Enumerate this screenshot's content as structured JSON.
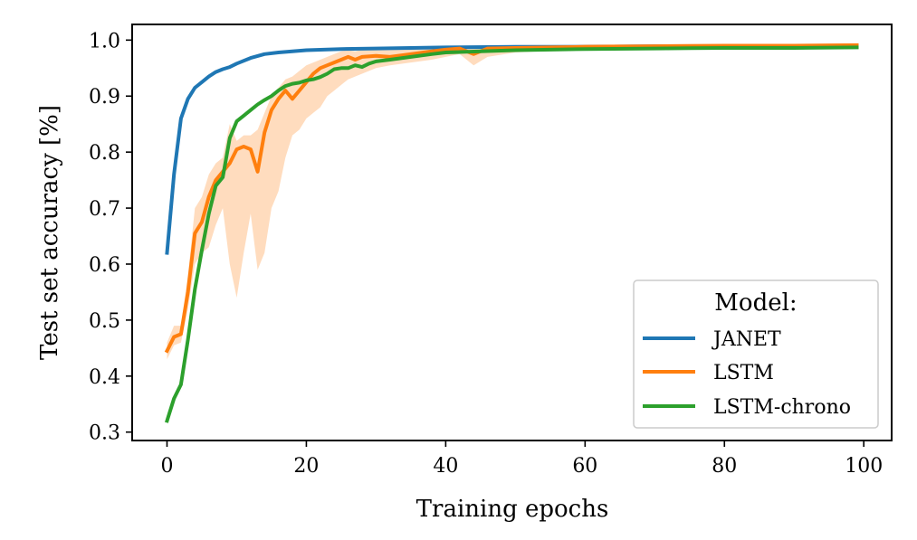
{
  "chart_data": {
    "type": "line",
    "title": "",
    "xlabel": "Training epochs",
    "ylabel": "Test set accuracy [%]",
    "xlim": [
      -5,
      104
    ],
    "ylim": [
      0.285,
      1.028
    ],
    "xticks": [
      0,
      20,
      40,
      60,
      80,
      100
    ],
    "xtick_labels": [
      "0",
      "20",
      "40",
      "60",
      "80",
      "100"
    ],
    "yticks": [
      0.3,
      0.4,
      0.5,
      0.6,
      0.7,
      0.8,
      0.9,
      1.0
    ],
    "ytick_labels": [
      "0.3",
      "0.4",
      "0.5",
      "0.6",
      "0.7",
      "0.8",
      "0.9",
      "1.0"
    ],
    "grid": false,
    "legend": {
      "title": "Model:",
      "location": "lower right",
      "entries": [
        "JANET",
        "LSTM",
        "LSTM-chrono"
      ]
    },
    "series": [
      {
        "name": "JANET",
        "color": "#1f77b4",
        "x": [
          0,
          1,
          2,
          3,
          4,
          5,
          6,
          7,
          8,
          9,
          10,
          12,
          14,
          16,
          18,
          20,
          25,
          30,
          40,
          50,
          60,
          70,
          80,
          90,
          99
        ],
        "y": [
          0.62,
          0.76,
          0.86,
          0.895,
          0.915,
          0.925,
          0.935,
          0.943,
          0.948,
          0.952,
          0.958,
          0.968,
          0.975,
          0.978,
          0.98,
          0.982,
          0.984,
          0.985,
          0.987,
          0.988,
          0.988,
          0.989,
          0.989,
          0.99,
          0.99
        ]
      },
      {
        "name": "LSTM",
        "color": "#ff7f0e",
        "band_color": "#ffd6b3",
        "x": [
          0,
          1,
          2,
          3,
          4,
          5,
          6,
          7,
          8,
          9,
          10,
          11,
          12,
          13,
          14,
          15,
          16,
          17,
          18,
          19,
          20,
          21,
          22,
          23,
          24,
          25,
          26,
          27,
          28,
          30,
          32,
          35,
          38,
          40,
          42,
          44,
          46,
          50,
          55,
          60,
          70,
          80,
          90,
          99
        ],
        "y": [
          0.445,
          0.47,
          0.475,
          0.55,
          0.655,
          0.675,
          0.72,
          0.75,
          0.765,
          0.78,
          0.805,
          0.81,
          0.805,
          0.765,
          0.835,
          0.875,
          0.895,
          0.91,
          0.895,
          0.91,
          0.925,
          0.94,
          0.95,
          0.955,
          0.96,
          0.965,
          0.97,
          0.965,
          0.97,
          0.972,
          0.97,
          0.975,
          0.98,
          0.983,
          0.985,
          0.975,
          0.985,
          0.986,
          0.987,
          0.988,
          0.989,
          0.99,
          0.99,
          0.991
        ],
        "lower": [
          0.43,
          0.455,
          0.46,
          0.52,
          0.6,
          0.62,
          0.63,
          0.67,
          0.7,
          0.6,
          0.54,
          0.62,
          0.69,
          0.59,
          0.62,
          0.7,
          0.73,
          0.79,
          0.83,
          0.84,
          0.86,
          0.87,
          0.88,
          0.9,
          0.91,
          0.92,
          0.93,
          0.935,
          0.94,
          0.95,
          0.955,
          0.96,
          0.965,
          0.97,
          0.975,
          0.955,
          0.97,
          0.978,
          0.981,
          0.983,
          0.985,
          0.986,
          0.986,
          0.987
        ],
        "upper": [
          0.46,
          0.49,
          0.49,
          0.58,
          0.7,
          0.72,
          0.76,
          0.78,
          0.79,
          0.85,
          0.82,
          0.83,
          0.83,
          0.84,
          0.87,
          0.9,
          0.915,
          0.93,
          0.935,
          0.945,
          0.955,
          0.96,
          0.965,
          0.97,
          0.975,
          0.98,
          0.982,
          0.98,
          0.983,
          0.985,
          0.985,
          0.987,
          0.989,
          0.99,
          0.99,
          0.99,
          0.99,
          0.991,
          0.991,
          0.992,
          0.993,
          0.993,
          0.993,
          0.994
        ]
      },
      {
        "name": "LSTM-chrono",
        "color": "#2ca02c",
        "x": [
          0,
          1,
          2,
          3,
          4,
          5,
          6,
          7,
          8,
          9,
          10,
          11,
          12,
          13,
          14,
          15,
          16,
          17,
          18,
          19,
          20,
          21,
          22,
          23,
          24,
          25,
          26,
          27,
          28,
          29,
          30,
          32,
          35,
          38,
          40,
          45,
          50,
          55,
          60,
          70,
          80,
          90,
          99
        ],
        "y": [
          0.32,
          0.36,
          0.385,
          0.465,
          0.555,
          0.625,
          0.69,
          0.74,
          0.755,
          0.825,
          0.855,
          0.865,
          0.875,
          0.885,
          0.893,
          0.9,
          0.91,
          0.918,
          0.922,
          0.924,
          0.928,
          0.93,
          0.934,
          0.94,
          0.948,
          0.95,
          0.95,
          0.955,
          0.952,
          0.958,
          0.962,
          0.965,
          0.97,
          0.975,
          0.978,
          0.98,
          0.982,
          0.983,
          0.984,
          0.985,
          0.986,
          0.986,
          0.987
        ]
      }
    ]
  }
}
